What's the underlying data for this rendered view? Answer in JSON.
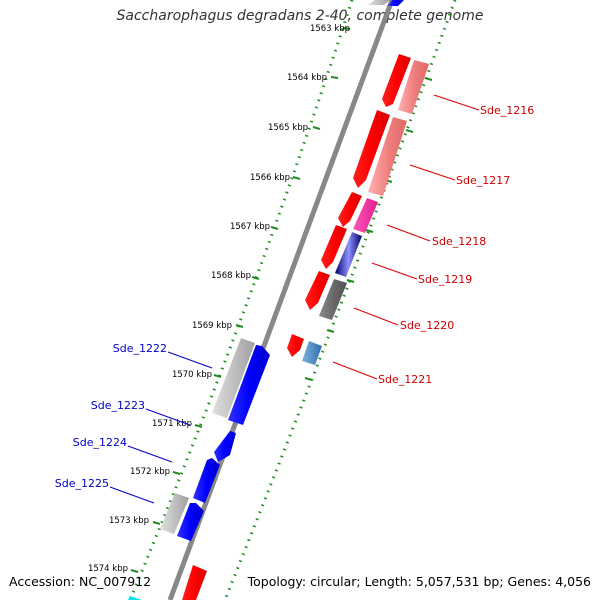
{
  "title": "Saccharophagus degradans 2-40, complete genome",
  "accession": "Accession: NC_007912",
  "summary": "Topology: circular; Length: 5,057,531 bp; Genes: 4,056",
  "colors": {
    "forward": "#ff0000",
    "forward_light": "#f08080",
    "reverse": "#0000ff",
    "gray": "#b0b0b0",
    "label_forward": "#cc0000",
    "label_reverse": "#0000cc",
    "tick": "#228b22",
    "backbone": "#888888"
  },
  "tick_labels": [
    "1563 kbp",
    "1564 kbp",
    "1565 kbp",
    "1566 kbp",
    "1567 kbp",
    "1568 kbp",
    "1569 kbp",
    "1570 kbp",
    "1571 kbp",
    "1572 kbp",
    "1573 kbp",
    "1574 kbp"
  ],
  "forward_labels": [
    "Sde_1216",
    "Sde_1217",
    "Sde_1218",
    "Sde_1219",
    "Sde_1220",
    "Sde_1221"
  ],
  "reverse_labels": [
    "Sde_1222",
    "Sde_1223",
    "Sde_1224",
    "Sde_1225"
  ]
}
